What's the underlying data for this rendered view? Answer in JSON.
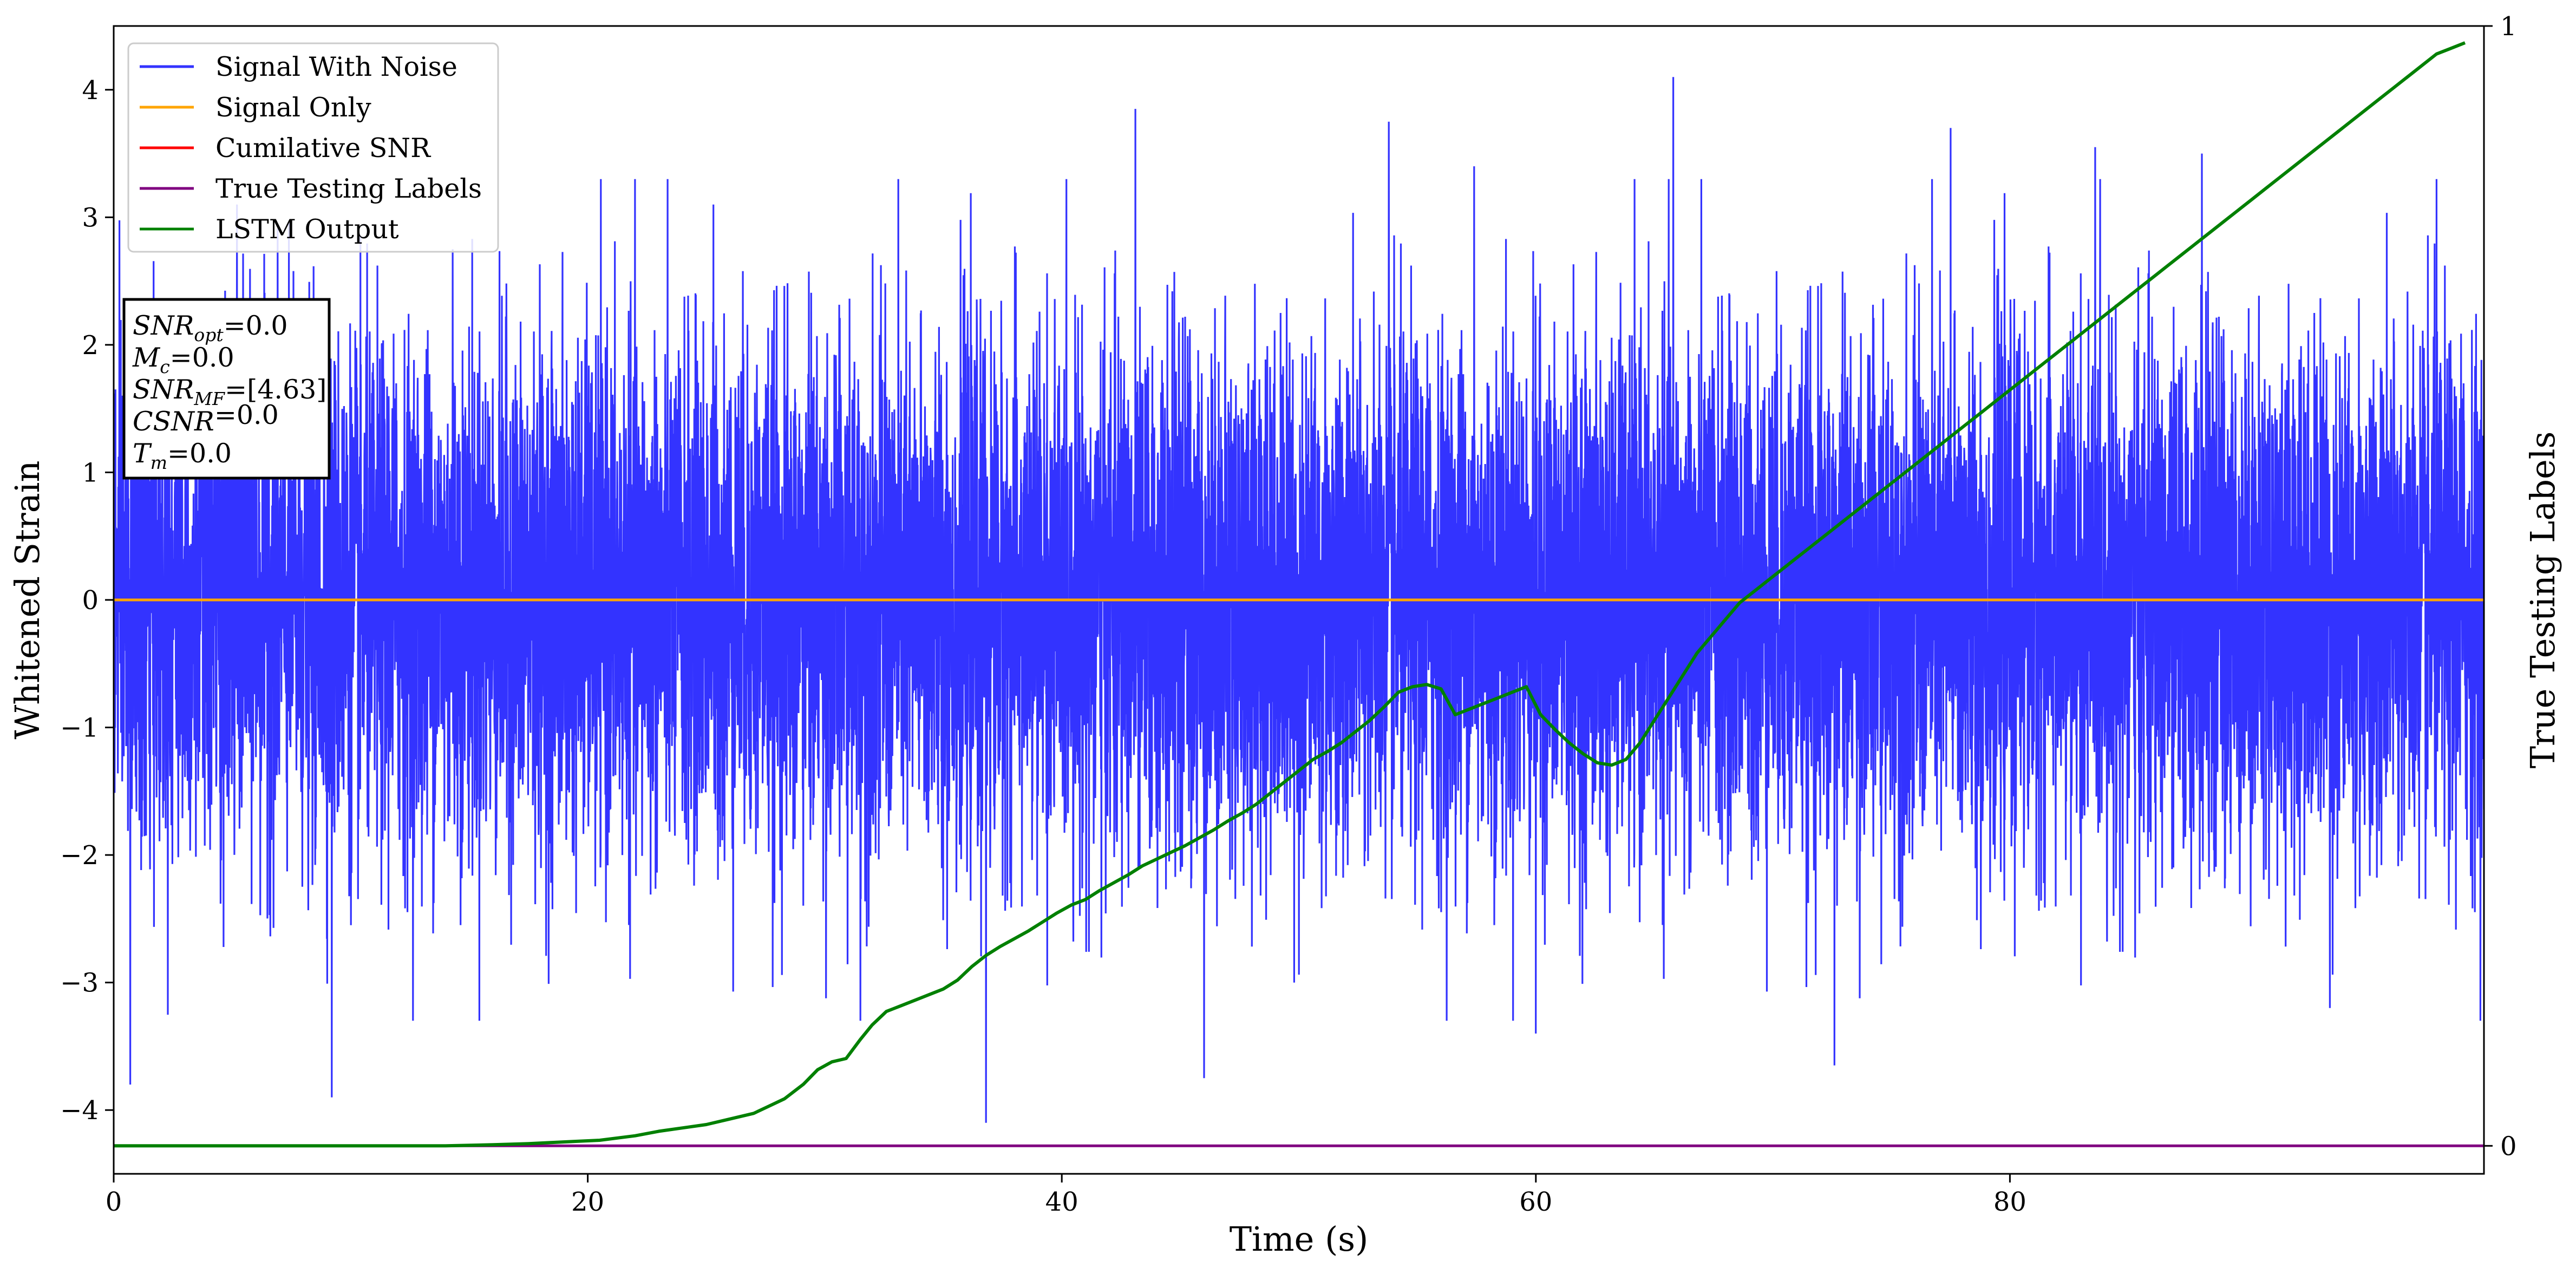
{
  "chart_data": {
    "type": "line",
    "xlabel": "Time (s)",
    "ylabel": "Whitened Strain",
    "y2label": "True Testing Labels",
    "xlim": [
      0,
      100
    ],
    "ylim": [
      -4.5,
      4.5
    ],
    "y2lim": [
      -0.025,
      1.0
    ],
    "x_ticks": [
      0,
      20,
      40,
      60,
      80
    ],
    "y_ticks": [
      -4,
      -3,
      -2,
      -1,
      0,
      1,
      2,
      3,
      4
    ],
    "y2_ticks": [
      0,
      1
    ],
    "legend_position": "upper-left",
    "grid": false,
    "colors": {
      "noise": "#3333ff",
      "signal": "#ffa500",
      "csnr": "#ff0000",
      "labels": "#800080",
      "lstm": "#008000"
    },
    "series": [
      {
        "name": "Signal With Noise",
        "axis": "left",
        "render": "dense-noise",
        "band_95": [
          -1.96,
          1.96
        ],
        "extremes": [
          {
            "x": 0.7,
            "y": -3.8
          },
          {
            "x": 9.2,
            "y": -3.9
          },
          {
            "x": 36.8,
            "y": -4.1
          },
          {
            "x": 43.1,
            "y": 3.85
          },
          {
            "x": 46.0,
            "y": -3.75
          },
          {
            "x": 53.8,
            "y": 3.75
          },
          {
            "x": 65.8,
            "y": 4.1
          },
          {
            "x": 72.6,
            "y": -3.65
          },
          {
            "x": 77.5,
            "y": 3.7
          },
          {
            "x": 83.6,
            "y": 3.55
          },
          {
            "x": 98.0,
            "y": 3.3
          },
          {
            "x": 31.5,
            "y": -3.3
          },
          {
            "x": 25.3,
            "y": 3.1
          },
          {
            "x": 49.8,
            "y": -3.0
          },
          {
            "x": 57.4,
            "y": 3.4
          },
          {
            "x": 60.0,
            "y": -3.4
          },
          {
            "x": 88.1,
            "y": 3.5
          },
          {
            "x": 93.5,
            "y": -3.2
          },
          {
            "x": 14.3,
            "y": 2.75
          },
          {
            "x": 5.2,
            "y": 3.1
          }
        ]
      },
      {
        "name": "Signal Only",
        "axis": "left",
        "x": [
          0,
          100
        ],
        "y": [
          0,
          0
        ]
      },
      {
        "name": "Cumilative SNR",
        "axis": "left",
        "x": [
          0,
          100
        ],
        "y": [
          0,
          0
        ]
      },
      {
        "name": "True Testing Labels",
        "axis": "right",
        "x": [
          0,
          100
        ],
        "y": [
          0,
          0
        ]
      },
      {
        "name": "LSTM Output",
        "axis": "right",
        "x": [
          0,
          14,
          16,
          17.5,
          18.5,
          19.5,
          20.5,
          22,
          23,
          24,
          25,
          26,
          27,
          27.6,
          28.3,
          29.1,
          29.7,
          30.3,
          30.9,
          31.5,
          32.0,
          32.6,
          33.2,
          33.8,
          34.4,
          35.0,
          35.6,
          36.2,
          36.8,
          37.4,
          38.0,
          38.6,
          39.2,
          39.8,
          40.4,
          41.0,
          41.6,
          42.2,
          42.8,
          43.4,
          44.0,
          44.6,
          45.2,
          45.8,
          46.4,
          47.0,
          47.6,
          48.2,
          48.8,
          49.4,
          50.0,
          50.6,
          51.2,
          51.8,
          52.4,
          53.0,
          53.6,
          54.2,
          54.8,
          55.4,
          56.0,
          56.6,
          57.2,
          57.8,
          58.4,
          59.0,
          59.6,
          60.2,
          60.8,
          61.4,
          62.0,
          62.6,
          63.2,
          63.8,
          64.4,
          65.0,
          65.6,
          66.2,
          66.8,
          67.4,
          68.0,
          68.6,
          69.2,
          69.8,
          70.4,
          71.0,
          71.6,
          72.2,
          72.8,
          73.4,
          74.0,
          74.6,
          75.2,
          75.8,
          76.4,
          77.0,
          77.6,
          78.2,
          78.8,
          79.4,
          80.0,
          80.6,
          81.2,
          81.8,
          82.4,
          83.0,
          83.6,
          84.2,
          84.8,
          85.4,
          86.0,
          86.6,
          87.2,
          87.8,
          88.4,
          89.0,
          89.6,
          90.2,
          90.8,
          91.4,
          92.0,
          92.6,
          93.2,
          93.8,
          94.4,
          95.0,
          95.6,
          96.2,
          96.8,
          97.4,
          98.0,
          98.6,
          99.2
        ],
        "y": [
          0.0,
          0.0,
          0.001,
          0.002,
          0.003,
          0.004,
          0.005,
          0.009,
          0.013,
          0.016,
          0.019,
          0.024,
          0.029,
          0.035,
          0.042,
          0.055,
          0.068,
          0.075,
          0.078,
          0.095,
          0.108,
          0.12,
          0.125,
          0.13,
          0.135,
          0.14,
          0.148,
          0.16,
          0.17,
          0.178,
          0.185,
          0.192,
          0.2,
          0.208,
          0.215,
          0.22,
          0.228,
          0.235,
          0.242,
          0.25,
          0.256,
          0.262,
          0.268,
          0.275,
          0.282,
          0.29,
          0.297,
          0.305,
          0.315,
          0.325,
          0.335,
          0.345,
          0.352,
          0.36,
          0.37,
          0.38,
          0.392,
          0.405,
          0.41,
          0.412,
          0.408,
          0.385,
          0.39,
          0.395,
          0.4,
          0.405,
          0.41,
          0.385,
          0.372,
          0.36,
          0.35,
          0.342,
          0.34,
          0.345,
          0.36,
          0.38,
          0.4,
          0.42,
          0.44,
          0.455,
          0.47,
          0.485,
          0.495,
          0.505,
          0.515,
          0.525,
          0.535,
          0.545,
          0.555,
          0.565,
          0.575,
          0.585,
          0.595,
          0.605,
          0.615,
          0.625,
          0.635,
          0.645,
          0.655,
          0.665,
          0.675,
          0.685,
          0.695,
          0.705,
          0.715,
          0.725,
          0.735,
          0.745,
          0.755,
          0.765,
          0.775,
          0.785,
          0.795,
          0.805,
          0.815,
          0.825,
          0.835,
          0.845,
          0.855,
          0.865,
          0.875,
          0.885,
          0.895,
          0.905,
          0.915,
          0.925,
          0.935,
          0.945,
          0.955,
          0.965,
          0.975,
          0.98,
          0.985
        ]
      }
    ],
    "annotation": {
      "lines": [
        {
          "base": "SNR",
          "sub": "opt",
          "value": "=0.0",
          "italic": true
        },
        {
          "base": "M",
          "sub": "c",
          "value": "=0.0",
          "italic": true
        },
        {
          "base": "SNR",
          "sub": "MF",
          "value": "=[4.63]",
          "italic": true
        },
        {
          "base": "CSNR",
          "sub": "",
          "value": "=0.0",
          "italic": true
        },
        {
          "base": "T",
          "sub": "m",
          "value": "=0.0",
          "italic": true
        }
      ]
    }
  }
}
